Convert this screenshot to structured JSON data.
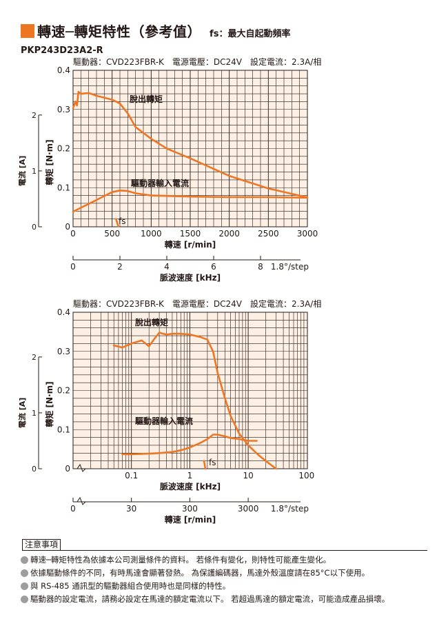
{
  "header": {
    "title": "轉速─轉矩特性（參考值）",
    "subtitle": "fs：最大自起動頻率",
    "model": "PKP243D23A2-R"
  },
  "chart_data": [
    {
      "type": "line",
      "conditions": "驅動器：CVD223FBR-K　電源電壓：DC24V　設定電流：2.3A/相",
      "xlabel": "轉速 [r/min]",
      "ylabel": "轉矩 [N·m]",
      "y2label": "電流 [A]",
      "x2label": "脈波速度 [kHz]",
      "x2unit": "1.8°/step",
      "xlim": [
        0,
        3000
      ],
      "ylim": [
        0,
        0.4
      ],
      "y2lim": [
        0,
        2.8
      ],
      "xticks": [
        "0",
        "500",
        "1000",
        "1500",
        "2000",
        "2500",
        "3000"
      ],
      "yticks": [
        "0",
        "0.1",
        "0.2",
        "0.3",
        "0.4"
      ],
      "y2ticks": [
        "0",
        "1",
        "2"
      ],
      "x2ticks": [
        "0",
        "2",
        "4",
        "6",
        "8"
      ],
      "grid": true,
      "series": [
        {
          "name": "脫出轉矩",
          "color": "#ee7623",
          "x": [
            0,
            30,
            50,
            70,
            100,
            200,
            300,
            400,
            500,
            600,
            700,
            800,
            900,
            1000,
            1200,
            1500,
            2000,
            2500,
            3000
          ],
          "y": [
            0.303,
            0.32,
            0.31,
            0.345,
            0.34,
            0.342,
            0.335,
            0.33,
            0.325,
            0.315,
            0.29,
            0.255,
            0.24,
            0.225,
            0.2,
            0.175,
            0.13,
            0.098,
            0.075
          ]
        },
        {
          "name": "驅動器輸入電流",
          "color": "#ee7623",
          "unit": "A",
          "x": [
            0,
            100,
            200,
            300,
            400,
            500,
            600,
            700,
            800,
            1000,
            1500,
            2000,
            2500,
            3000
          ],
          "y": [
            0.27,
            0.34,
            0.41,
            0.48,
            0.55,
            0.62,
            0.65,
            0.64,
            0.6,
            0.56,
            0.54,
            0.53,
            0.53,
            0.52
          ]
        },
        {
          "name": "fs",
          "color": "#ee7623",
          "x": [
            550,
            580
          ],
          "y": [
            0.02,
            0.001
          ]
        }
      ]
    },
    {
      "type": "line",
      "conditions": "驅動器：CVD223FBR-K　電源電壓：DC24V　設定電流：2.3A/相",
      "xlabel": "脈波速度 [kHz]",
      "ylabel": "轉矩 [N·m]",
      "y2label": "電流 [A]",
      "x2label": "轉速 [r/min]",
      "x2unit": "1.8°/step",
      "xscale": "log",
      "xlim": [
        0.01,
        100
      ],
      "ylim": [
        0,
        0.4
      ],
      "y2lim": [
        0,
        2.8
      ],
      "xticks": [
        "0.1",
        "1",
        "10",
        "100"
      ],
      "yticks": [
        "0",
        "0.1",
        "0.2",
        "0.3",
        "0.4"
      ],
      "y2ticks": [
        "0",
        "1",
        "2"
      ],
      "x2ticks": [
        "0",
        "30",
        "300",
        "3000"
      ],
      "grid": true,
      "series": [
        {
          "name": "脫出轉矩",
          "color": "#ee7623",
          "x": [
            0.05,
            0.07,
            0.1,
            0.15,
            0.2,
            0.25,
            0.3,
            0.35,
            0.4,
            0.5,
            0.7,
            1,
            1.5,
            2,
            2.5,
            3,
            4,
            5,
            7,
            10,
            15,
            20,
            30
          ],
          "y": [
            0.315,
            0.31,
            0.32,
            0.328,
            0.313,
            0.333,
            0.348,
            0.345,
            0.343,
            0.345,
            0.345,
            0.343,
            0.337,
            0.33,
            0.3,
            0.245,
            0.18,
            0.135,
            0.09,
            0.06,
            0.035,
            0.02,
            0
          ]
        },
        {
          "name": "驅動器輸入電流",
          "color": "#ee7623",
          "unit": "A",
          "x": [
            0.07,
            0.1,
            0.2,
            0.3,
            0.5,
            0.7,
            1,
            1.5,
            2,
            2.5,
            3,
            4,
            5,
            7,
            10,
            14
          ],
          "y": [
            0.26,
            0.26,
            0.27,
            0.28,
            0.3,
            0.33,
            0.38,
            0.46,
            0.53,
            0.61,
            0.61,
            0.58,
            0.55,
            0.53,
            0.5,
            0.5
          ]
        },
        {
          "name": "fs",
          "color": "#ee7623",
          "x": [
            1.75,
            1.85
          ],
          "y": [
            0.02,
            0
          ]
        }
      ]
    }
  ],
  "notes": {
    "heading": "注意事項",
    "items": [
      "轉速─轉矩特性為依據本公司測量條件的資料。 若條件有變化，則特性可能產生變化。",
      "依據驅動條件的不同，有時馬達會顯著發熱。 為保護編碼器，馬達外殼溫度請在85°C以下使用。",
      "與 RS-485 通訊型的驅動器組合使用時也是同樣的特性。",
      "驅動器的設定電流，請務必設定在馬達的額定電流以下。 若超過馬達的額定電流，可能造成產品損壞。"
    ]
  }
}
